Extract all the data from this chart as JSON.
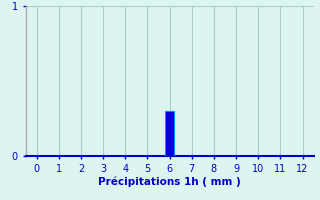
{
  "hours": [
    0,
    1,
    2,
    3,
    4,
    5,
    6,
    7,
    8,
    9,
    10,
    11,
    12
  ],
  "values": [
    0,
    0,
    0,
    0,
    0,
    0,
    0.3,
    0,
    0,
    0,
    0,
    0,
    0
  ],
  "bar_color": "#0000dd",
  "bar_edge_color": "#0088ff",
  "background_color": "#ddf5f0",
  "left_spine_color": "#aaaaaa",
  "bottom_spine_color": "#0000cc",
  "grid_color": "#aacccc",
  "xlabel": "Précipitations 1h ( mm )",
  "xlabel_color": "#0000cc",
  "tick_label_color": "#0000cc",
  "ylim": [
    0,
    1
  ],
  "xlim": [
    -0.5,
    12.5
  ],
  "yticks": [
    0,
    1
  ],
  "xticks": [
    0,
    1,
    2,
    3,
    4,
    5,
    6,
    7,
    8,
    9,
    10,
    11,
    12
  ],
  "xlabel_fontsize": 7.5,
  "tick_fontsize": 7,
  "bar_width": 0.4
}
